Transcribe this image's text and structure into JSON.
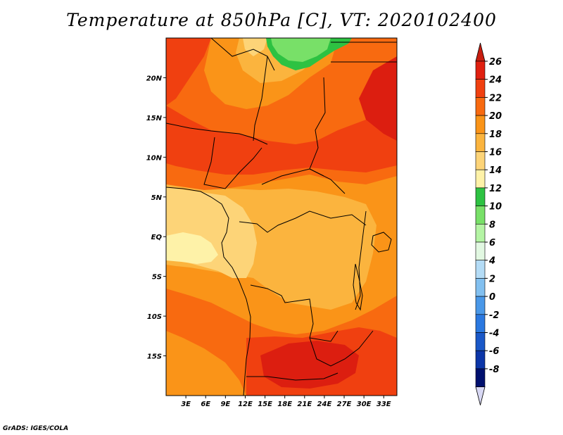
{
  "title": "Temperature at 850hPa [C], VT: 2020102400",
  "credit": "GrADS: IGES/COLA",
  "map": {
    "lon_range": [
      0,
      35
    ],
    "lat_range": [
      -20,
      25
    ],
    "x_ticks": [
      {
        "lon": 3,
        "label": "3E"
      },
      {
        "lon": 6,
        "label": "6E"
      },
      {
        "lon": 9,
        "label": "9E"
      },
      {
        "lon": 12,
        "label": "12E"
      },
      {
        "lon": 15,
        "label": "15E"
      },
      {
        "lon": 18,
        "label": "18E"
      },
      {
        "lon": 21,
        "label": "21E"
      },
      {
        "lon": 24,
        "label": "24E"
      },
      {
        "lon": 27,
        "label": "27E"
      },
      {
        "lon": 30,
        "label": "30E"
      },
      {
        "lon": 33,
        "label": "33E"
      }
    ],
    "y_ticks": [
      {
        "lat": 20,
        "label": "20N"
      },
      {
        "lat": 15,
        "label": "15N"
      },
      {
        "lat": 10,
        "label": "10N"
      },
      {
        "lat": 5,
        "label": "5N"
      },
      {
        "lat": 0,
        "label": "EQ"
      },
      {
        "lat": -5,
        "label": "5S"
      },
      {
        "lat": -10,
        "label": "10S"
      },
      {
        "lat": -15,
        "label": "15S"
      }
    ]
  },
  "colorbar": {
    "levels": [
      26,
      24,
      22,
      20,
      18,
      16,
      14,
      12,
      10,
      8,
      6,
      4,
      2,
      0,
      -2,
      -4,
      -6,
      -8
    ],
    "colors": [
      "#e02010",
      "#f04010",
      "#f86a10",
      "#fa9418",
      "#fbb43e",
      "#fdd478",
      "#fef2a8",
      "#2dc242",
      "#78e068",
      "#b4f4a4",
      "#e2f8e2",
      "#b4dcf6",
      "#82c0f0",
      "#4a98e8",
      "#2a78e0",
      "#1a58c8",
      "#0c36a8",
      "#00106e"
    ],
    "top_color": "#c81e10",
    "bottom_color": "#d8d8f4"
  },
  "field": {
    "colors": {
      "t26": "#dc1e10",
      "t24": "#f04010",
      "t22": "#f86a10",
      "t20": "#fa9418",
      "t18": "#fbb43e",
      "t16": "#fdd478",
      "t14": "#fef2a8",
      "t12": "#2dc242",
      "t10": "#78e068"
    }
  }
}
